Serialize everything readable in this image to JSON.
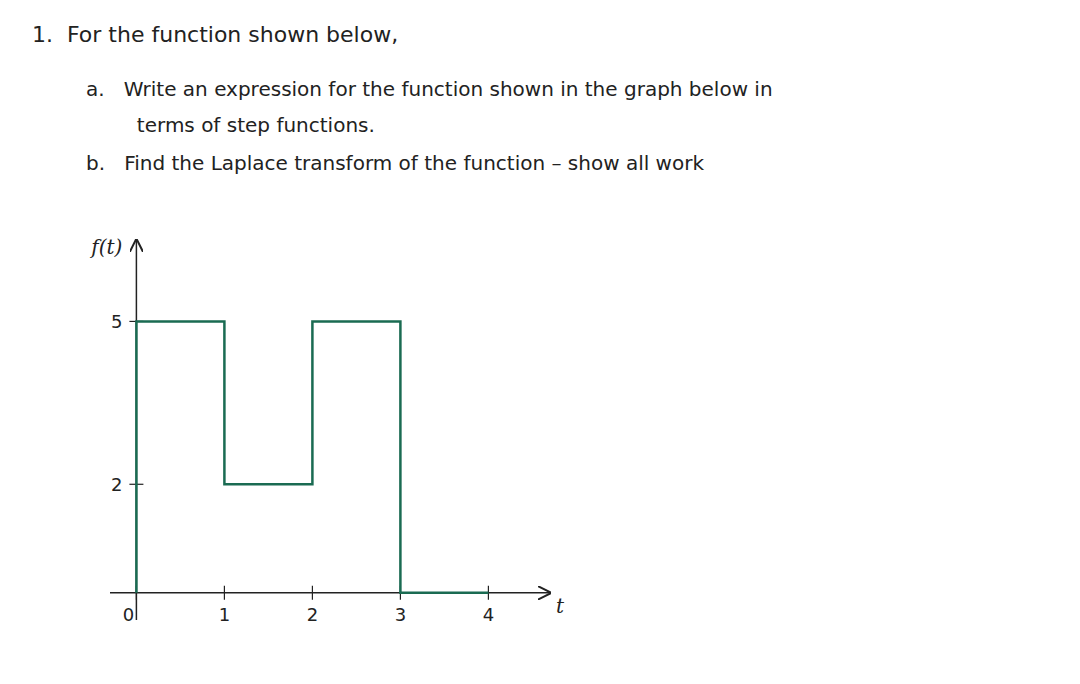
{
  "chart_data": {
    "type": "line",
    "title": "1.  For the function shown below,",
    "annotations": [
      "a.   Write an expression for the function shown in the graph below in",
      "        terms of step functions.",
      "b.   Find the Laplace transform of the function – show all work"
    ],
    "xlabel": "t",
    "ylabel": "f(t)",
    "x": [
      0,
      0,
      1,
      1,
      2,
      2,
      3,
      3,
      4,
      4
    ],
    "values": [
      0,
      5,
      5,
      2,
      2,
      5,
      5,
      0,
      0,
      0
    ],
    "color": "#1a6b52",
    "xlim": [
      -0.3,
      4.7
    ],
    "ylim": [
      -0.5,
      6.5
    ],
    "xticks": [
      0,
      1,
      2,
      3,
      4
    ],
    "yticks": [
      2,
      5
    ],
    "grid": false
  }
}
